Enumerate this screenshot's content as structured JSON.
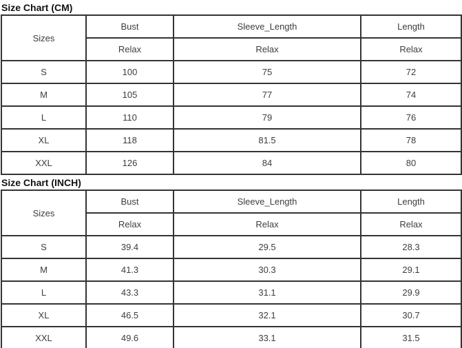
{
  "page": {
    "background": "#ffffff",
    "border_color": "#333333",
    "cell_text_color": "#3d3d3d",
    "title_text_color": "#111111"
  },
  "tables": [
    {
      "title": "Size Chart (CM)",
      "unit": "CM",
      "header": {
        "sizes_label": "Sizes",
        "columns": [
          "Bust",
          "Sleeve_Length",
          "Length"
        ],
        "sub": [
          "Relax",
          "Relax",
          "Relax"
        ]
      },
      "rows": [
        {
          "size": "S",
          "values": [
            "100",
            "75",
            "72"
          ]
        },
        {
          "size": "M",
          "values": [
            "105",
            "77",
            "74"
          ]
        },
        {
          "size": "L",
          "values": [
            "110",
            "79",
            "76"
          ]
        },
        {
          "size": "XL",
          "values": [
            "118",
            "81.5",
            "78"
          ]
        },
        {
          "size": "XXL",
          "values": [
            "126",
            "84",
            "80"
          ]
        }
      ]
    },
    {
      "title": "Size Chart (INCH)",
      "unit": "INCH",
      "header": {
        "sizes_label": "Sizes",
        "columns": [
          "Bust",
          "Sleeve_Length",
          "Length"
        ],
        "sub": [
          "Relax",
          "Relax",
          "Relax"
        ]
      },
      "rows": [
        {
          "size": "S",
          "values": [
            "39.4",
            "29.5",
            "28.3"
          ]
        },
        {
          "size": "M",
          "values": [
            "41.3",
            "30.3",
            "29.1"
          ]
        },
        {
          "size": "L",
          "values": [
            "43.3",
            "31.1",
            "29.9"
          ]
        },
        {
          "size": "XL",
          "values": [
            "46.5",
            "32.1",
            "30.7"
          ]
        },
        {
          "size": "XXL",
          "values": [
            "49.6",
            "33.1",
            "31.5"
          ]
        }
      ]
    }
  ]
}
